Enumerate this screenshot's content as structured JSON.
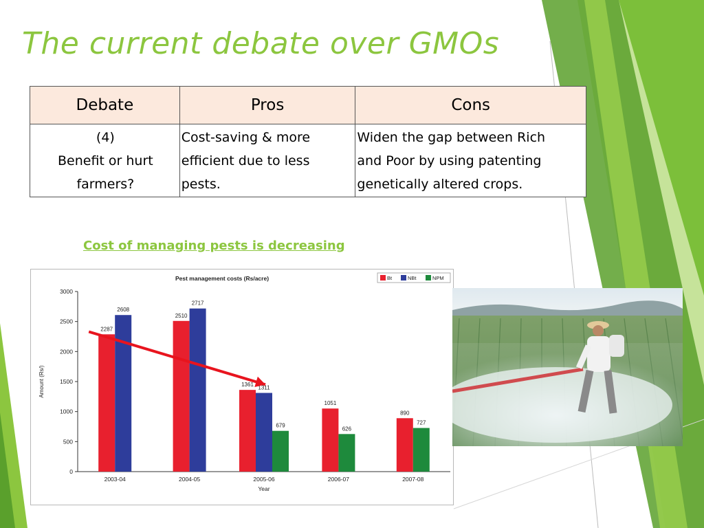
{
  "slide": {
    "title": "The current debate over GMOs",
    "caption": "Cost of managing pests is decreasing",
    "accent_color": "#8cc63f"
  },
  "table": {
    "headers": [
      "Debate",
      "Pros",
      "Cons"
    ],
    "row": {
      "debate": [
        "(4)",
        "Benefit or hurt",
        "farmers?"
      ],
      "pros": [
        "Cost-saving & more",
        "efficient due to less",
        "pests."
      ],
      "cons": [
        "Widen the gap between Rich",
        "and Poor by using patenting",
        "genetically altered crops."
      ]
    },
    "header_bg": "#fce9dd"
  },
  "chart_data": {
    "type": "bar",
    "title": "Pest  management  costs  (Rs/acre)",
    "xlabel": "Year",
    "ylabel": "Amount (Rs/)",
    "ylim": [
      0,
      3000
    ],
    "yticks": [
      0,
      500,
      1000,
      1500,
      2000,
      2500,
      3000
    ],
    "categories": [
      "2003-04",
      "2004-05",
      "2005-06",
      "2006-07",
      "2007-08"
    ],
    "series": [
      {
        "name": "Bt",
        "color": "#e8202e",
        "values": [
          2287,
          2510,
          1361,
          1051,
          890
        ],
        "labels": [
          "2287",
          "2510",
          "1361",
          "1051",
          "890"
        ]
      },
      {
        "name": "NBt",
        "color": "#2e3d9b",
        "values": [
          2608,
          2717,
          1311,
          null,
          null
        ],
        "labels": [
          "2608",
          "2717",
          "1311",
          "",
          ""
        ]
      },
      {
        "name": "NPM",
        "color": "#1e8a3c",
        "values": [
          null,
          null,
          679,
          626,
          727
        ],
        "labels": [
          "",
          "",
          "679",
          "626",
          "727"
        ]
      }
    ],
    "legend_position": "top-right",
    "grid": false,
    "annotation": {
      "type": "arrow",
      "from": {
        "category": "2003-04",
        "value": 2330
      },
      "to": {
        "category": "2005-06",
        "value": 1450
      },
      "color": "#e8141e"
    }
  },
  "photo": {
    "icon": "farmer-spraying-crops-photo"
  }
}
